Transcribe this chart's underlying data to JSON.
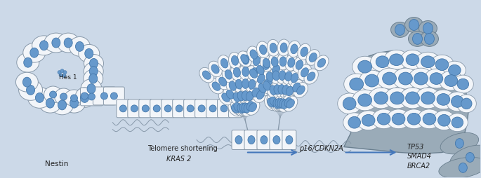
{
  "bg_color": "#ccd9e8",
  "cell_fill": "#f2f5f9",
  "cell_stroke": "#8899aa",
  "nucleus_fill": "#6699cc",
  "nucleus_stroke": "#4477aa",
  "gray_fill": "#9aabb8",
  "gray_stroke": "#6a7f8f",
  "arrow_color": "#4477bb",
  "text_color": "#222222",
  "labels": {
    "nestin": "Nestin",
    "hes1": "Hes 1",
    "telomere": "Telomere shortening",
    "kras": "KRAS 2",
    "p16": "p16/CDKN2A",
    "tp53": "TP53",
    "smad4": "SMAD4",
    "brca2": "BRCA2"
  }
}
